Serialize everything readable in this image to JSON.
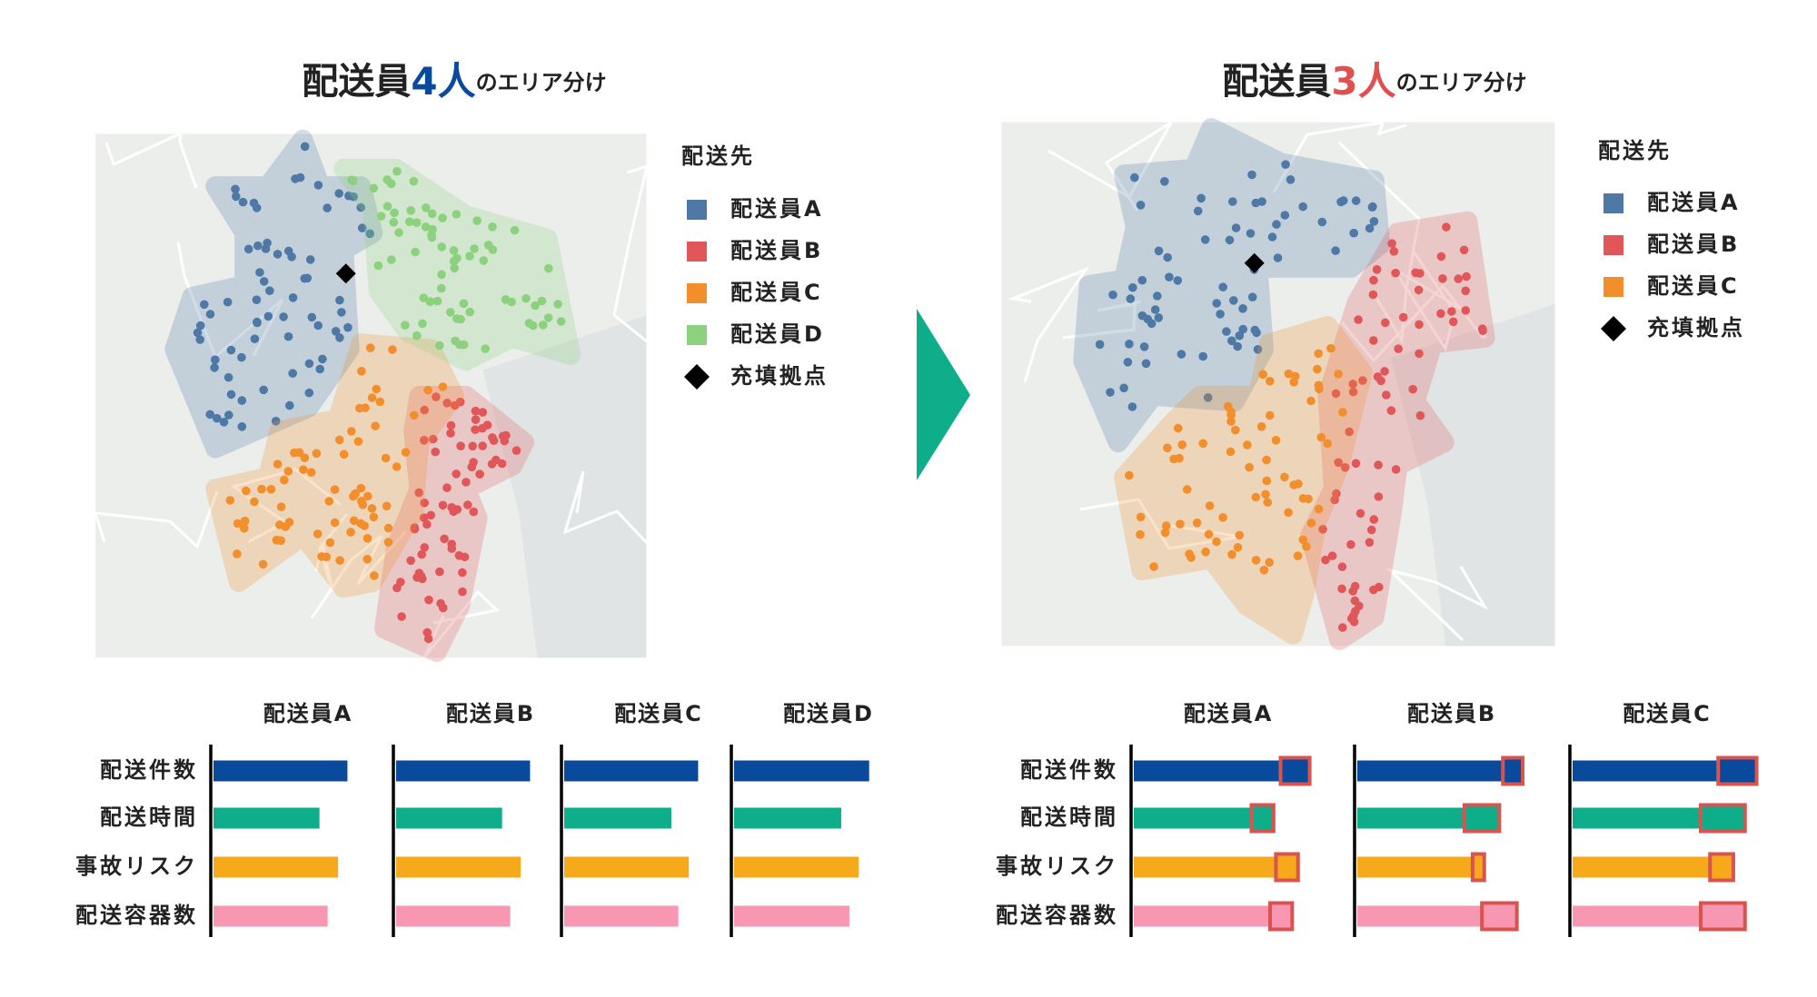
{
  "left": {
    "title": [
      "配送員",
      "4人",
      "のエリア分け"
    ],
    "title_color": "#0a4a9c",
    "legend": {
      "title": "配送先",
      "items": [
        {
          "label": "配送員A",
          "color": "#4e79a7",
          "shape": "square"
        },
        {
          "label": "配送員B",
          "color": "#e15759",
          "shape": "square"
        },
        {
          "label": "配送員C",
          "color": "#f28e2b",
          "shape": "square"
        },
        {
          "label": "配送員D",
          "color": "#8cd17d",
          "shape": "square"
        },
        {
          "label": "充填拠点",
          "color": "#000000",
          "shape": "diamond"
        }
      ]
    },
    "metrics": [
      {
        "label": "配送件数",
        "color": "#0a4a9c"
      },
      {
        "label": "配送時間",
        "color": "#0fae8a"
      },
      {
        "label": "事故リスク",
        "color": "#f5a91b"
      },
      {
        "label": "配送容器数",
        "color": "#f797b2"
      }
    ],
    "couriers": [
      {
        "name": "配送員A",
        "values": [
          115,
          91,
          107,
          98
        ]
      },
      {
        "name": "配送員B",
        "values": [
          115,
          91,
          107,
          98
        ]
      },
      {
        "name": "配送員C",
        "values": [
          115,
          92,
          107,
          98
        ]
      },
      {
        "name": "配送員D",
        "values": [
          116,
          92,
          107,
          99
        ]
      }
    ]
  },
  "right": {
    "title": [
      "配送員",
      "3人",
      "のエリア分け"
    ],
    "title_color": "#e05050",
    "legend": {
      "title": "配送先",
      "items": [
        {
          "label": "配送員A",
          "color": "#4e79a7",
          "shape": "square"
        },
        {
          "label": "配送員B",
          "color": "#e15759",
          "shape": "square"
        },
        {
          "label": "配送員C",
          "color": "#f28e2b",
          "shape": "square"
        },
        {
          "label": "充填拠点",
          "color": "#000000",
          "shape": "diamond"
        }
      ]
    },
    "metrics": [
      {
        "label": "配送件数",
        "color": "#0a4a9c"
      },
      {
        "label": "配送時間",
        "color": "#0fae8a"
      },
      {
        "label": "事故リスク",
        "color": "#f5a91b"
      },
      {
        "label": "配送容器数",
        "color": "#f797b2"
      }
    ],
    "increase_color": "#d9534f",
    "couriers": [
      {
        "name": "配送員A",
        "base": [
          126,
          101,
          122,
          117
        ],
        "increase": [
          25,
          19,
          19,
          19
        ]
      },
      {
        "name": "配送員B",
        "base": [
          125,
          92,
          99,
          107
        ],
        "increase": [
          17,
          30,
          10,
          30
        ]
      },
      {
        "name": "配送員C",
        "base": [
          125,
          110,
          118,
          110
        ],
        "increase": [
          33,
          38,
          20,
          38
        ]
      }
    ]
  }
}
